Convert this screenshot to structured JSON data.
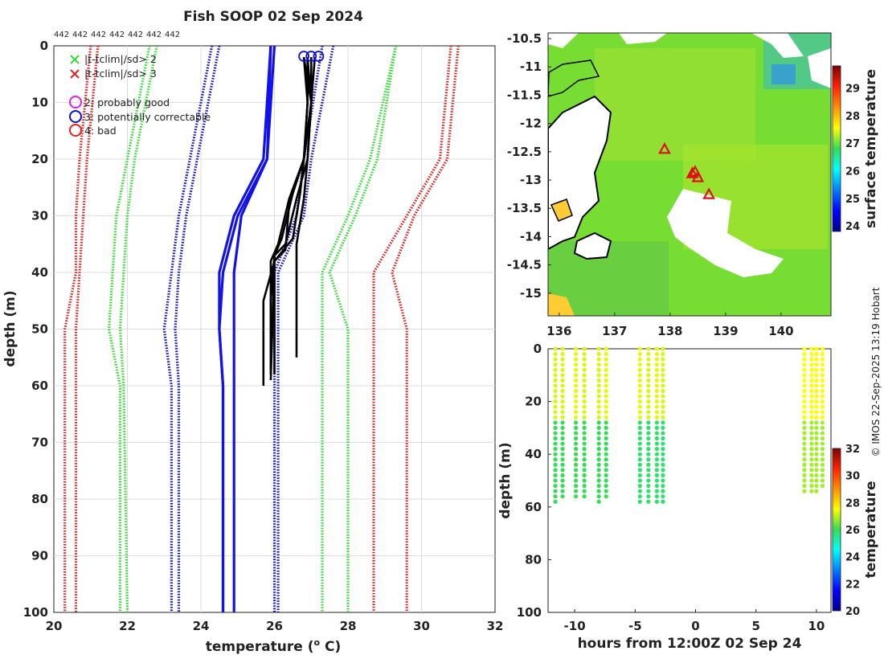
{
  "credit": "© IMOS 22-Sep-2025 13:19 Hobart",
  "chart_data": [
    {
      "type": "line",
      "title": "Fish SOOP 02 Sep 2024",
      "xlabel": "temperature (",
      "xlabel_sup": "o",
      "xlabel_end": " C)",
      "ylabel": "depth (m)",
      "xlim": [
        20,
        32
      ],
      "ylim": [
        100,
        0
      ],
      "xticks": [
        "20",
        "22",
        "24",
        "26",
        "28",
        "30",
        "32"
      ],
      "yticks": [
        "0",
        "10",
        "20",
        "30",
        "40",
        "50",
        "60",
        "70",
        "80",
        "90",
        "100"
      ],
      "profile_counts": [
        "442",
        "442",
        "442",
        "442",
        "442",
        "442",
        "442"
      ],
      "legend": [
        {
          "label": "|t-tclim|/sd> 2",
          "color": "#33dd33",
          "marker": "x"
        },
        {
          "label": "|t-tclim|/sd> 3",
          "color": "#dd2222",
          "marker": "x"
        },
        {
          "label": "2: probably good",
          "color": "#dd22dd",
          "marker": "o"
        },
        {
          "label": "3: potentially correctable",
          "color": "#1111cc",
          "marker": "o"
        },
        {
          "label": "4: bad",
          "color": "#dd2222",
          "marker": "o"
        }
      ],
      "series": [
        {
          "name": "clim red outer left",
          "color": "#dd2222",
          "style": "dotted",
          "x": [
            21.0,
            20.7,
            20.6,
            20.6,
            20.3,
            20.3,
            20.3
          ],
          "y": [
            0,
            20,
            30,
            40,
            50,
            60,
            100
          ]
        },
        {
          "name": "clim red inner left",
          "color": "#dd2222",
          "style": "dotted",
          "x": [
            21.2,
            20.9,
            20.8,
            20.7,
            20.6,
            20.6,
            20.6
          ],
          "y": [
            0,
            20,
            30,
            40,
            50,
            60,
            100
          ]
        },
        {
          "name": "clim green outer left",
          "color": "#33dd33",
          "style": "dotted",
          "x": [
            22.6,
            22.0,
            21.7,
            21.6,
            21.5,
            21.8,
            21.8
          ],
          "y": [
            0,
            20,
            30,
            40,
            50,
            60,
            100
          ]
        },
        {
          "name": "clim green inner left",
          "color": "#33dd33",
          "style": "dotted",
          "x": [
            22.8,
            22.2,
            22.0,
            21.9,
            21.8,
            21.9,
            22.0
          ],
          "y": [
            0,
            20,
            30,
            40,
            50,
            60,
            100
          ]
        },
        {
          "name": "clim blue outer left",
          "color": "#1111cc",
          "style": "dotted",
          "x": [
            24.3,
            23.7,
            23.4,
            23.2,
            23.0,
            23.2,
            23.2
          ],
          "y": [
            0,
            20,
            30,
            40,
            50,
            60,
            100
          ]
        },
        {
          "name": "clim blue inner left",
          "color": "#1111cc",
          "style": "dotted",
          "x": [
            24.5,
            23.9,
            23.6,
            23.4,
            23.3,
            23.4,
            23.4
          ],
          "y": [
            0,
            20,
            30,
            40,
            50,
            60,
            100
          ]
        },
        {
          "name": "mean blue a",
          "color": "#1111ee",
          "style": "solid",
          "x": [
            25.9,
            25.7,
            24.9,
            24.5,
            24.5,
            24.6,
            24.6
          ],
          "y": [
            0,
            20,
            30,
            40,
            50,
            60,
            100
          ]
        },
        {
          "name": "mean blue b",
          "color": "#1111ee",
          "style": "solid",
          "x": [
            25.9,
            25.8,
            25.0,
            24.6,
            24.5,
            24.6,
            24.6
          ],
          "y": [
            0,
            20,
            30,
            40,
            50,
            60,
            100
          ]
        },
        {
          "name": "mean blue c",
          "color": "#1111ee",
          "style": "solid",
          "x": [
            26.0,
            25.8,
            25.1,
            24.9,
            24.9,
            24.9,
            24.9
          ],
          "y": [
            0,
            20,
            30,
            40,
            50,
            60,
            100
          ]
        },
        {
          "name": "clim blue inner right",
          "color": "#1111cc",
          "style": "dotted",
          "x": [
            27.3,
            26.8,
            26.6,
            26.0,
            26.0,
            26.0,
            26.0
          ],
          "y": [
            0,
            20,
            30,
            40,
            50,
            60,
            100
          ]
        },
        {
          "name": "clim blue outer right",
          "color": "#1111cc",
          "style": "dotted",
          "x": [
            27.6,
            27.0,
            26.8,
            26.1,
            26.1,
            26.1,
            26.1
          ],
          "y": [
            0,
            20,
            30,
            40,
            50,
            60,
            100
          ]
        },
        {
          "name": "clim green inner right",
          "color": "#33dd33",
          "style": "dotted",
          "x": [
            29.3,
            28.6,
            28.0,
            27.3,
            27.3,
            27.3,
            27.3
          ],
          "y": [
            0,
            20,
            30,
            40,
            50,
            60,
            100
          ]
        },
        {
          "name": "clim green outer right",
          "color": "#33dd33",
          "style": "dotted",
          "x": [
            29.3,
            28.8,
            28.2,
            27.5,
            28.0,
            28.0,
            28.0
          ],
          "y": [
            0,
            20,
            30,
            40,
            50,
            60,
            100
          ]
        },
        {
          "name": "clim red inner right",
          "color": "#dd2222",
          "style": "dotted",
          "x": [
            30.8,
            30.5,
            29.6,
            28.7,
            28.7,
            28.7,
            28.7
          ],
          "y": [
            0,
            20,
            30,
            40,
            50,
            60,
            100
          ]
        },
        {
          "name": "clim red outer right",
          "color": "#dd2222",
          "style": "dotted",
          "x": [
            31.0,
            30.7,
            29.8,
            29.2,
            29.6,
            29.6,
            29.6
          ],
          "y": [
            0,
            20,
            30,
            40,
            50,
            60,
            100
          ]
        },
        {
          "name": "profile 1",
          "color": "#000000",
          "style": "solid",
          "x": [
            26.8,
            26.9,
            26.8,
            26.7,
            26.5,
            26.0,
            25.7,
            25.7
          ],
          "y": [
            2,
            10,
            20,
            26,
            34,
            38,
            45,
            60
          ]
        },
        {
          "name": "profile 2",
          "color": "#000000",
          "style": "solid",
          "x": [
            26.9,
            27.0,
            26.9,
            26.6,
            26.3,
            26.0,
            25.9,
            25.9
          ],
          "y": [
            2,
            10,
            20,
            27,
            35,
            37,
            45,
            58
          ]
        },
        {
          "name": "profile 3",
          "color": "#000000",
          "style": "solid",
          "x": [
            26.8,
            27.0,
            26.8,
            26.4,
            26.1,
            25.9,
            25.9
          ],
          "y": [
            2,
            10,
            20,
            27,
            35,
            38,
            57
          ]
        },
        {
          "name": "profile 4",
          "color": "#000000",
          "style": "solid",
          "x": [
            27.0,
            27.0,
            26.9,
            26.8,
            26.6,
            26.6,
            26.6
          ],
          "y": [
            2,
            10,
            20,
            27,
            35,
            38,
            55
          ]
        },
        {
          "name": "profile 5",
          "color": "#000000",
          "style": "solid",
          "x": [
            27.1,
            27.0,
            26.8,
            26.5,
            26.2,
            26.0,
            26.0
          ],
          "y": [
            2,
            10,
            20,
            26,
            34,
            37,
            58
          ]
        },
        {
          "name": "profile 6",
          "color": "#000000",
          "style": "solid",
          "x": [
            26.9,
            26.9,
            26.8,
            26.4,
            26.3,
            26.0,
            25.9
          ],
          "y": [
            2,
            10,
            20,
            28,
            36,
            38,
            59
          ]
        }
      ],
      "flag_points": [
        {
          "flag": "3",
          "x": 26.8,
          "y": 1
        },
        {
          "flag": "3",
          "x": 27.0,
          "y": 1
        },
        {
          "flag": "3",
          "x": 27.2,
          "y": 1
        }
      ]
    },
    {
      "type": "heatmap",
      "title": "",
      "colorbar_label": "surface temperature",
      "xlim": [
        135.8,
        140.9
      ],
      "ylim": [
        -15.4,
        -10.4
      ],
      "xticks": [
        "136",
        "137",
        "138",
        "139",
        "140"
      ],
      "yticks": [
        "-10.5",
        "-11",
        "-11.5",
        "-12",
        "-12.5",
        "-13",
        "-13.5",
        "-14",
        "-14.5",
        "-15"
      ],
      "colorbar_range": [
        23.8,
        29.8
      ],
      "colorbar_ticks": [
        "24",
        "25",
        "26",
        "27",
        "28",
        "29"
      ],
      "stations": [
        {
          "lon": 137.9,
          "lat": -12.45
        },
        {
          "lon": 138.4,
          "lat": -12.88
        },
        {
          "lon": 138.5,
          "lat": -12.95
        },
        {
          "lon": 138.45,
          "lat": -12.85
        },
        {
          "lon": 138.7,
          "lat": -13.25
        }
      ]
    },
    {
      "type": "scatter",
      "title": "",
      "xlabel": "hours from 12:00Z 02 Sep 24",
      "ylabel": "depth (m)",
      "colorbar_label": "temperature",
      "xlim": [
        -12.2,
        11.2
      ],
      "ylim": [
        100,
        0
      ],
      "xticks": [
        "-10",
        "-5",
        "0",
        "5",
        "10"
      ],
      "yticks": [
        "0",
        "20",
        "40",
        "60",
        "80",
        "100"
      ],
      "colorbar_range": [
        20,
        32
      ],
      "colorbar_ticks": [
        "20",
        "22",
        "24",
        "26",
        "28",
        "30",
        "32"
      ],
      "casts": [
        {
          "x": -11.6,
          "max_depth": 58,
          "surface_temp": 27.2,
          "deep_temp": 26.0
        },
        {
          "x": -11.0,
          "max_depth": 57,
          "surface_temp": 27.2,
          "deep_temp": 26.0
        },
        {
          "x": -9.9,
          "max_depth": 56,
          "surface_temp": 27.3,
          "deep_temp": 26.0
        },
        {
          "x": -9.2,
          "max_depth": 56,
          "surface_temp": 27.2,
          "deep_temp": 26.0
        },
        {
          "x": -8.0,
          "max_depth": 58,
          "surface_temp": 27.2,
          "deep_temp": 26.0
        },
        {
          "x": -7.4,
          "max_depth": 57,
          "surface_temp": 27.3,
          "deep_temp": 26.0
        },
        {
          "x": -4.6,
          "max_depth": 59,
          "surface_temp": 27.3,
          "deep_temp": 25.8
        },
        {
          "x": -3.9,
          "max_depth": 59,
          "surface_temp": 27.2,
          "deep_temp": 25.8
        },
        {
          "x": -3.2,
          "max_depth": 59,
          "surface_temp": 27.3,
          "deep_temp": 25.8
        },
        {
          "x": -2.7,
          "max_depth": 58,
          "surface_temp": 27.2,
          "deep_temp": 25.8
        },
        {
          "x": 9.0,
          "max_depth": 54,
          "surface_temp": 27.5,
          "deep_temp": 26.8
        },
        {
          "x": 9.6,
          "max_depth": 55,
          "surface_temp": 27.5,
          "deep_temp": 26.8
        },
        {
          "x": 10.0,
          "max_depth": 54,
          "surface_temp": 27.5,
          "deep_temp": 26.8
        },
        {
          "x": 10.5,
          "max_depth": 53,
          "surface_temp": 27.5,
          "deep_temp": 26.8
        }
      ]
    }
  ]
}
